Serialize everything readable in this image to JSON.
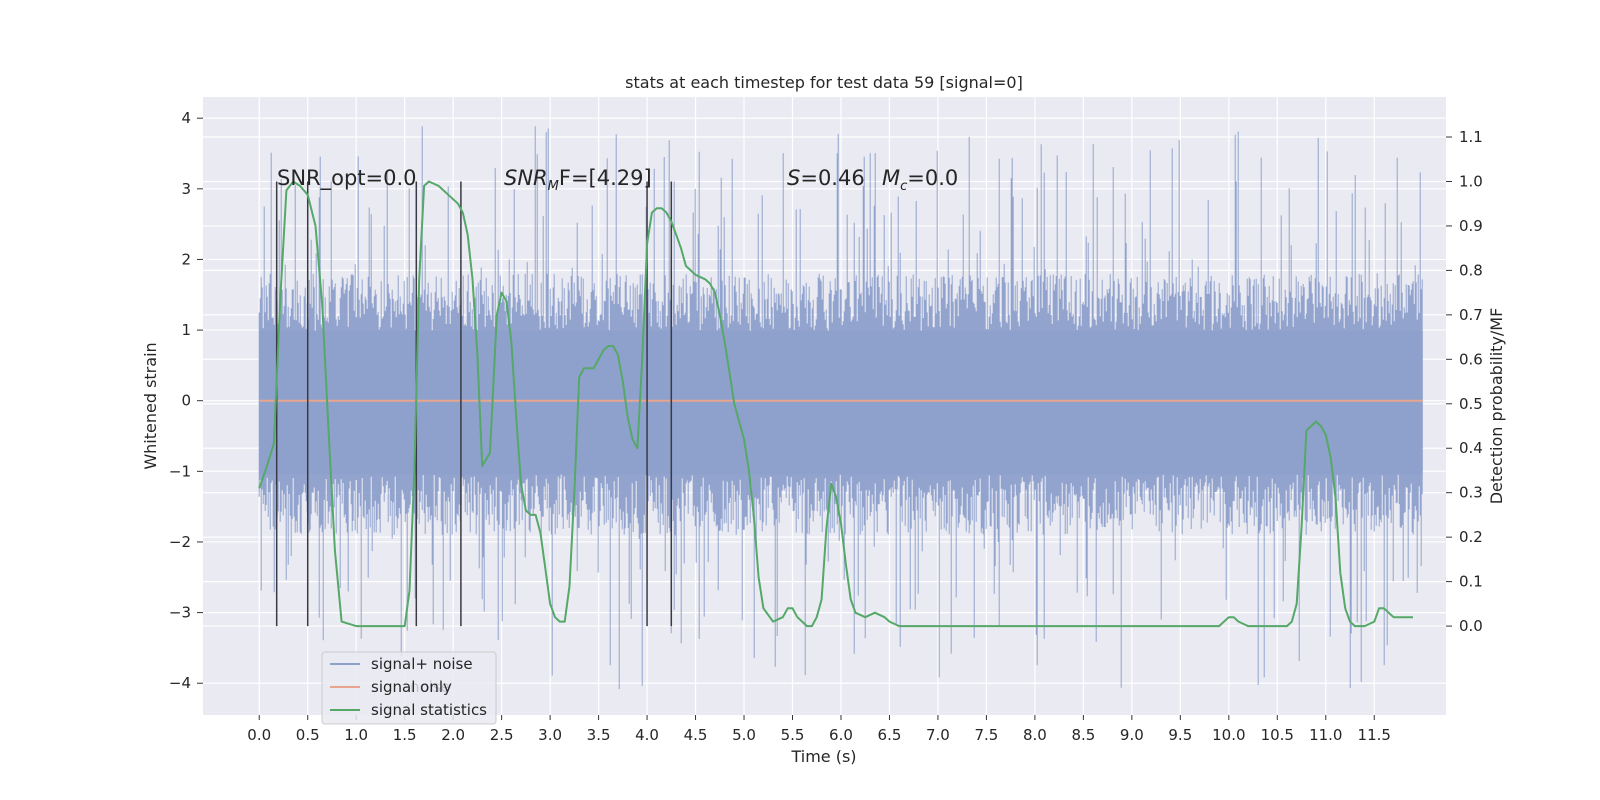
{
  "chart_data": {
    "type": "line",
    "title": "stats at each timestep for test data 59 [signal=0]",
    "xlabel": "Time (s)",
    "ylabel_left": "Whitened strain",
    "ylabel_right": "Detection probability/MF",
    "xlim": [
      -0.58,
      12.24
    ],
    "ylim_left": [
      -4.45,
      4.3
    ],
    "ylim_right": [
      -0.2,
      1.19
    ],
    "grid": true,
    "x_ticks": [
      0.0,
      0.5,
      1.0,
      1.5,
      2.0,
      2.5,
      3.0,
      3.5,
      4.0,
      4.5,
      5.0,
      5.5,
      6.0,
      6.5,
      7.0,
      7.5,
      8.0,
      8.5,
      9.0,
      9.5,
      10.0,
      10.5,
      11.0,
      11.5
    ],
    "x_tick_labels": [
      "0.0",
      "0.5",
      "1.0",
      "1.5",
      "2.0",
      "2.5",
      "3.0",
      "3.5",
      "4.0",
      "4.5",
      "5.0",
      "5.5",
      "6.0",
      "6.5",
      "7.0",
      "7.5",
      "8.0",
      "8.5",
      "9.0",
      "9.5",
      "10.0",
      "10.5",
      "11.0",
      "11.5"
    ],
    "y_left_ticks": [
      -4,
      -3,
      -2,
      -1,
      0,
      1,
      2,
      3,
      4
    ],
    "y_left_tick_labels": [
      "−4",
      "−3",
      "−2",
      "−1",
      "0",
      "1",
      "2",
      "3",
      "4"
    ],
    "y_right_ticks": [
      0.0,
      0.1,
      0.2,
      0.3,
      0.4,
      0.5,
      0.6,
      0.7,
      0.8,
      0.9,
      1.0,
      1.1
    ],
    "y_right_tick_labels": [
      "0.0",
      "0.1",
      "0.2",
      "0.3",
      "0.4",
      "0.5",
      "0.6",
      "0.7",
      "0.8",
      "0.9",
      "1.0",
      "1.1"
    ],
    "noise_series": {
      "name": "signal+ noise",
      "color": "#8da0cb",
      "x_range": [
        0.0,
        12.0
      ],
      "band_low": -1.9,
      "band_high": 1.8,
      "spike_max": 3.9,
      "spike_min": -4.1
    },
    "signal_series": {
      "name": "signal only",
      "color": "#e8a58d",
      "x": [
        0.0,
        12.0
      ],
      "y": [
        0.0,
        0.0
      ]
    },
    "stats_series": {
      "name": "signal statistics",
      "color": "#55a868",
      "x": [
        0.0,
        0.08,
        0.15,
        0.22,
        0.28,
        0.35,
        0.42,
        0.5,
        0.58,
        0.65,
        0.72,
        0.78,
        0.85,
        1.0,
        1.2,
        1.4,
        1.5,
        1.55,
        1.6,
        1.65,
        1.7,
        1.75,
        1.85,
        1.95,
        2.05,
        2.1,
        2.15,
        2.2,
        2.25,
        2.3,
        2.38,
        2.45,
        2.5,
        2.55,
        2.6,
        2.65,
        2.7,
        2.75,
        2.8,
        2.85,
        2.9,
        2.95,
        3.0,
        3.05,
        3.1,
        3.15,
        3.2,
        3.25,
        3.3,
        3.35,
        3.4,
        3.45,
        3.5,
        3.55,
        3.6,
        3.65,
        3.7,
        3.75,
        3.8,
        3.85,
        3.9,
        3.95,
        4.0,
        4.05,
        4.1,
        4.15,
        4.2,
        4.25,
        4.3,
        4.35,
        4.4,
        4.5,
        4.6,
        4.65,
        4.7,
        4.75,
        4.8,
        4.85,
        4.9,
        4.95,
        5.0,
        5.05,
        5.1,
        5.15,
        5.2,
        5.3,
        5.4,
        5.45,
        5.5,
        5.55,
        5.6,
        5.65,
        5.7,
        5.75,
        5.8,
        5.85,
        5.9,
        5.95,
        6.0,
        6.05,
        6.1,
        6.15,
        6.25,
        6.35,
        6.45,
        6.5,
        6.6,
        6.8,
        7.0,
        7.2,
        7.4,
        7.6,
        7.8,
        8.0,
        8.3,
        8.6,
        8.9,
        9.2,
        9.5,
        9.8,
        9.9,
        10.0,
        10.05,
        10.1,
        10.2,
        10.3,
        10.5,
        10.6,
        10.65,
        10.7,
        10.75,
        10.8,
        10.85,
        10.9,
        10.95,
        11.0,
        11.05,
        11.1,
        11.15,
        11.2,
        11.25,
        11.3,
        11.35,
        11.4,
        11.5,
        11.55,
        11.6,
        11.7,
        11.8,
        11.9
      ],
      "y": [
        0.31,
        0.36,
        0.41,
        0.75,
        0.98,
        1.0,
        0.99,
        0.97,
        0.9,
        0.72,
        0.42,
        0.17,
        0.01,
        0.0,
        0.0,
        0.0,
        0.0,
        0.08,
        0.35,
        0.78,
        0.99,
        1.0,
        0.99,
        0.97,
        0.95,
        0.93,
        0.88,
        0.78,
        0.61,
        0.36,
        0.39,
        0.7,
        0.75,
        0.73,
        0.64,
        0.47,
        0.32,
        0.26,
        0.25,
        0.25,
        0.21,
        0.13,
        0.05,
        0.02,
        0.01,
        0.01,
        0.09,
        0.3,
        0.56,
        0.58,
        0.58,
        0.58,
        0.6,
        0.62,
        0.63,
        0.63,
        0.61,
        0.55,
        0.47,
        0.42,
        0.4,
        0.6,
        0.86,
        0.93,
        0.94,
        0.94,
        0.93,
        0.91,
        0.88,
        0.85,
        0.81,
        0.79,
        0.78,
        0.77,
        0.75,
        0.7,
        0.64,
        0.57,
        0.5,
        0.46,
        0.42,
        0.35,
        0.25,
        0.11,
        0.04,
        0.01,
        0.02,
        0.04,
        0.04,
        0.02,
        0.01,
        0.0,
        0.0,
        0.02,
        0.06,
        0.22,
        0.32,
        0.29,
        0.23,
        0.14,
        0.06,
        0.03,
        0.02,
        0.03,
        0.02,
        0.01,
        0.0,
        0.0,
        0.0,
        0.0,
        0.0,
        0.0,
        0.0,
        0.0,
        0.0,
        0.0,
        0.0,
        0.0,
        0.0,
        0.0,
        0.0,
        0.02,
        0.02,
        0.01,
        0.0,
        0.0,
        0.0,
        0.0,
        0.01,
        0.05,
        0.22,
        0.44,
        0.45,
        0.46,
        0.45,
        0.43,
        0.38,
        0.29,
        0.12,
        0.04,
        0.01,
        0.0,
        0.0,
        0.0,
        0.01,
        0.04,
        0.04,
        0.02,
        0.02,
        0.02
      ]
    },
    "vertical_markers_x": [
      0.18,
      0.5,
      1.62,
      2.08,
      4.0,
      4.25
    ],
    "vertical_markers_range_right": [
      0.0,
      1.0
    ],
    "annotations": {
      "snr_opt": "SNR_opt=0.0",
      "snr_mf_prefix": "SNR",
      "snr_mf_sub": "M",
      "snr_mf_suffix": "F=[4.29]",
      "s_italic": "S",
      "s_value": "=0.46",
      "mc_italic": "M",
      "mc_sub": "c",
      "mc_value": "=0.0"
    },
    "legend": {
      "position": "lower-left",
      "entries": [
        "signal+ noise",
        "signal only",
        "signal statistics"
      ],
      "hidden_text": "noise"
    }
  },
  "colors": {
    "plot_bg": "#eaeaf2",
    "grid": "#ffffff",
    "marker": "#3a3a44"
  }
}
